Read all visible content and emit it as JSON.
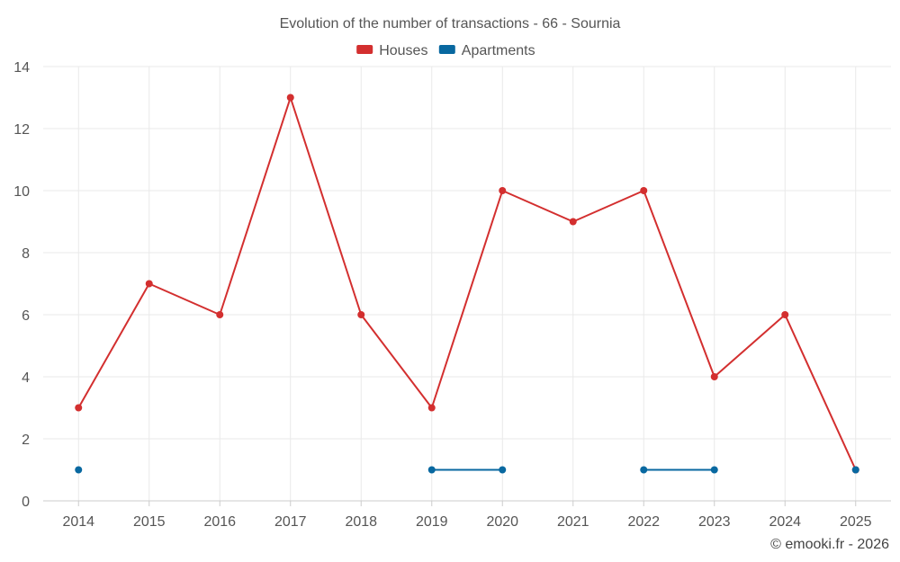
{
  "chart_data": {
    "type": "line",
    "title": "Evolution of the number of transactions - 66 - Sournia",
    "categories": [
      "2014",
      "2015",
      "2016",
      "2017",
      "2018",
      "2019",
      "2020",
      "2021",
      "2022",
      "2023",
      "2024",
      "2025"
    ],
    "series": [
      {
        "name": "Houses",
        "color": "#d32f2f",
        "values": [
          3,
          7,
          6,
          13,
          6,
          3,
          10,
          9,
          10,
          4,
          6,
          1
        ]
      },
      {
        "name": "Apartments",
        "color": "#0868a0",
        "values": [
          1,
          null,
          null,
          null,
          null,
          1,
          1,
          null,
          1,
          1,
          null,
          1
        ]
      }
    ],
    "yticks": [
      0,
      2,
      4,
      6,
      8,
      10,
      12,
      14
    ],
    "ylim": [
      0,
      14
    ],
    "xlabel": "",
    "ylabel": "",
    "legend_position": "top-center",
    "grid": true
  },
  "credit": "© emooki.fr - 2026"
}
